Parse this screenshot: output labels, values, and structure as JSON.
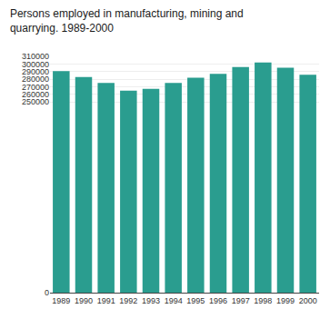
{
  "chart_data": {
    "type": "bar",
    "title": "Persons employed in manufacturing, mining and\nquarrying. 1989-2000",
    "categories": [
      "1989",
      "1990",
      "1991",
      "1992",
      "1993",
      "1994",
      "1995",
      "1996",
      "1997",
      "1998",
      "1999",
      "2000"
    ],
    "values": [
      290500,
      283000,
      275000,
      265000,
      267500,
      275000,
      282000,
      287000,
      296000,
      302000,
      295000,
      286000
    ],
    "color": "#2a9d8f",
    "ylim": [
      0,
      310000
    ],
    "yticks": [
      0,
      250000,
      260000,
      270000,
      280000,
      290000,
      300000,
      310000
    ],
    "grid": true
  }
}
